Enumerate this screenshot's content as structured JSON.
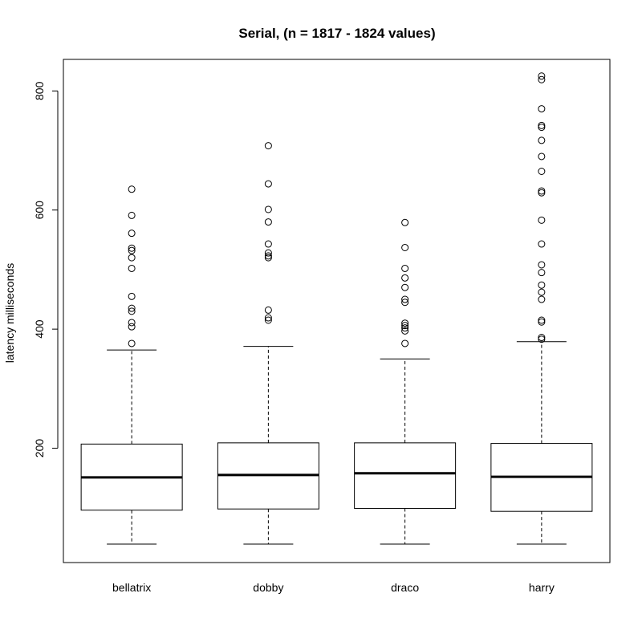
{
  "chart_data": {
    "type": "boxplot",
    "title": "Serial,  (n = 1817 - 1824 values)",
    "xlabel": "",
    "ylabel": "latency milliseconds",
    "ylim": [
      8,
      853
    ],
    "yticks": [
      200,
      400,
      600,
      800
    ],
    "ytick_labels": [
      "200",
      "400",
      "600",
      "800"
    ],
    "grid": false,
    "categories": [
      "bellatrix",
      "dobby",
      "draco",
      "harry"
    ],
    "boxes": [
      {
        "name": "bellatrix",
        "whisker_low": 39,
        "q1": 96,
        "median": 151,
        "q3": 207,
        "whisker_high": 365,
        "outliers": [
          376,
          404,
          411,
          430,
          435,
          455,
          502,
          520,
          532,
          536,
          561,
          591,
          635
        ]
      },
      {
        "name": "dobby",
        "whisker_low": 39,
        "q1": 98,
        "median": 155,
        "q3": 209,
        "whisker_high": 371,
        "outliers": [
          415,
          419,
          432,
          520,
          523,
          528,
          543,
          580,
          601,
          644,
          708
        ]
      },
      {
        "name": "draco",
        "whisker_low": 39,
        "q1": 99,
        "median": 158,
        "q3": 209,
        "whisker_high": 350,
        "outliers": [
          376,
          397,
          402,
          406,
          410,
          445,
          450,
          470,
          486,
          502,
          537,
          579
        ]
      },
      {
        "name": "harry",
        "whisker_low": 39,
        "q1": 94,
        "median": 152,
        "q3": 208,
        "whisker_high": 379,
        "outliers": [
          383,
          386,
          412,
          415,
          450,
          462,
          474,
          495,
          508,
          543,
          583,
          629,
          632,
          665,
          690,
          717,
          739,
          742,
          770,
          819,
          825
        ]
      }
    ]
  }
}
